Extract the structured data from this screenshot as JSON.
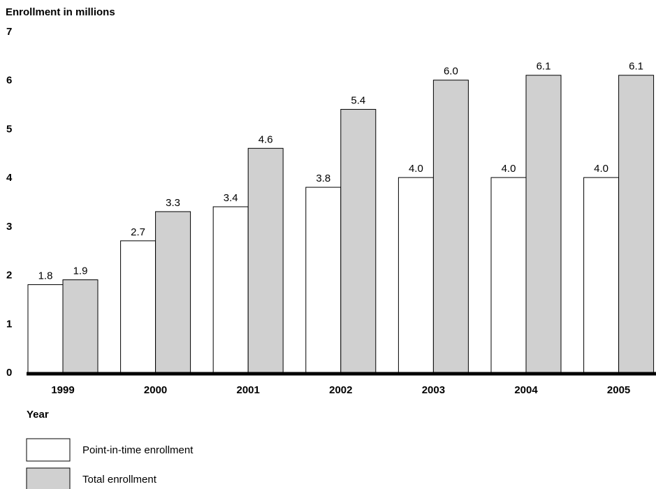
{
  "chart_data": {
    "type": "bar",
    "ylabel": "Enrollment in millions",
    "xlabel": "Year",
    "ylim": [
      0,
      7
    ],
    "yticks": [
      "0",
      "1",
      "2",
      "3",
      "4",
      "5",
      "6",
      "7"
    ],
    "categories": [
      "1999",
      "2000",
      "2001",
      "2002",
      "2003",
      "2004",
      "2005"
    ],
    "series": [
      {
        "name": "Point-in-time enrollment",
        "color": "#ffffff",
        "values": [
          1.8,
          2.7,
          3.4,
          3.8,
          4.0,
          4.0,
          4.0
        ],
        "labels": [
          "1.8",
          "2.7",
          "3.4",
          "3.8",
          "4.0",
          "4.0",
          "4.0"
        ]
      },
      {
        "name": "Total enrollment",
        "color": "#d0d0d0",
        "values": [
          1.9,
          3.3,
          4.6,
          5.4,
          6.0,
          6.1,
          6.1
        ],
        "labels": [
          "1.9",
          "3.3",
          "4.6",
          "5.4",
          "6.0",
          "6.1",
          "6.1"
        ]
      }
    ],
    "grid": false,
    "legend_position": "bottom-left"
  }
}
